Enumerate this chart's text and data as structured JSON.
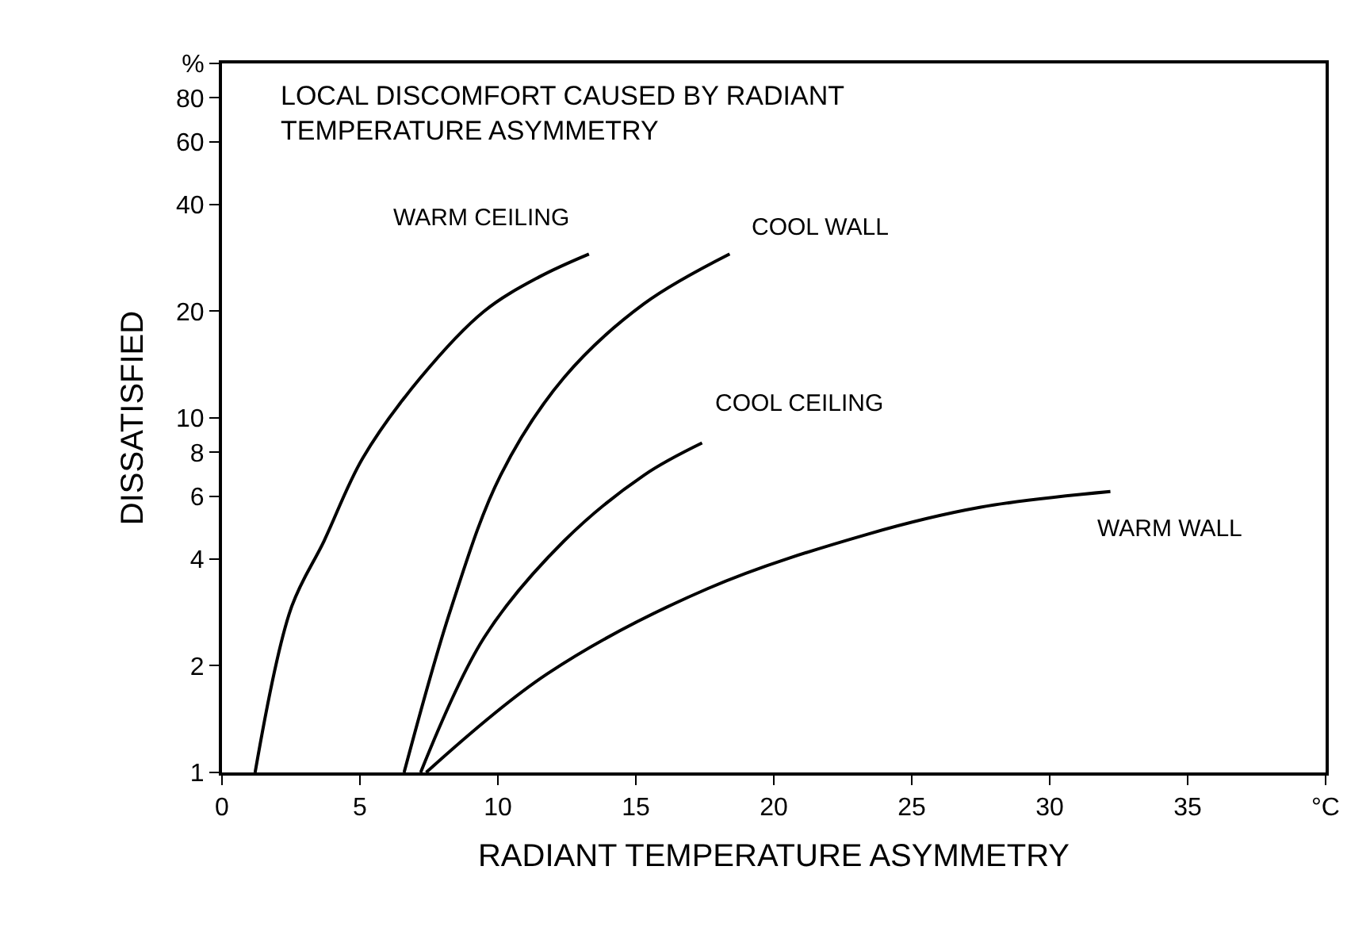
{
  "chart_data": {
    "type": "line",
    "title": "LOCAL DISCOMFORT CAUSED BY RADIANT\nTEMPERATURE ASYMMETRY",
    "xlabel": "RADIANT TEMPERATURE ASYMMETRY",
    "ylabel": "DISSATISFIED",
    "series": [
      {
        "name": "WARM CEILING",
        "color": "#000000",
        "x": [
          1.2,
          2.5,
          3.7,
          5.1,
          7.2,
          9.5,
          11.5,
          13.3
        ],
        "values": [
          1,
          2.9,
          4.5,
          7.7,
          13,
          20,
          25,
          29
        ]
      },
      {
        "name": "COOL WALL",
        "color": "#000000",
        "x": [
          6.6,
          8.3,
          10.1,
          12.4,
          15.3,
          18.4
        ],
        "values": [
          1,
          2.9,
          6.9,
          13,
          21,
          29
        ]
      },
      {
        "name": "COOL CEILING",
        "color": "#000000",
        "x": [
          7.2,
          9.5,
          12.4,
          15.3,
          17.4
        ],
        "values": [
          1,
          2.4,
          4.5,
          6.9,
          8.5
        ]
      },
      {
        "name": "WARM WALL",
        "color": "#000000",
        "x": [
          7.4,
          11.8,
          17.6,
          23.4,
          27.5,
          32.2
        ],
        "values": [
          1,
          1.9,
          3.3,
          4.7,
          5.6,
          6.2
        ]
      }
    ],
    "xlim": [
      0,
      40
    ],
    "xticks": [
      0,
      5,
      10,
      15,
      20,
      25,
      30,
      35,
      {
        "value": 40,
        "label": "°C"
      }
    ],
    "ylim": [
      1,
      100
    ],
    "yticks": [
      1,
      2,
      4,
      6,
      8,
      10,
      20,
      40,
      60,
      80,
      {
        "value": 100,
        "label": "%"
      }
    ],
    "log": true,
    "legend": false,
    "marker": "none",
    "line_style": "solid"
  }
}
